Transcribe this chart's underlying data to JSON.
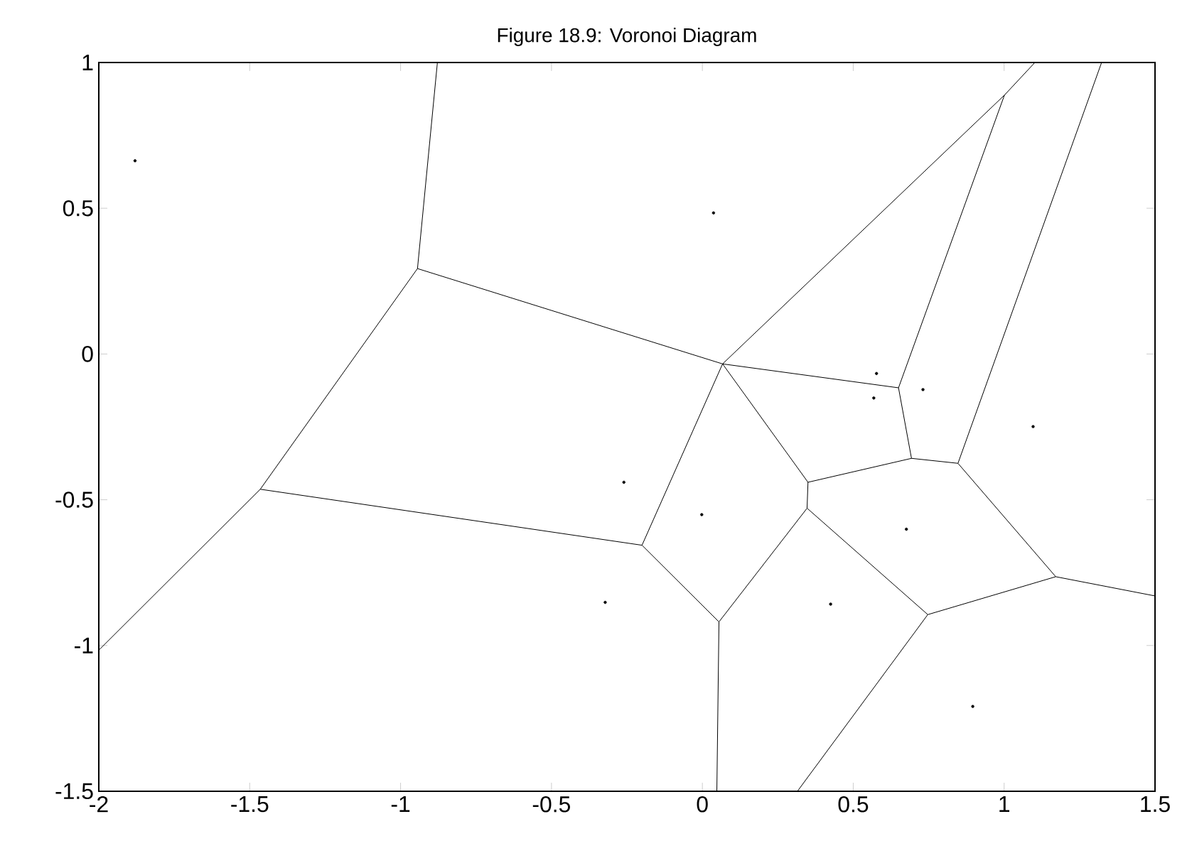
{
  "chart_data": {
    "type": "scatter",
    "title": "Figure 18.9: Voronoi Diagram",
    "xlim": [
      -2,
      1.5
    ],
    "ylim": [
      -1.5,
      1
    ],
    "xticks": [
      -2,
      -1.5,
      -1,
      -0.5,
      0,
      0.5,
      1,
      1.5
    ],
    "yticks": [
      -1.5,
      -1,
      -0.5,
      0,
      0.5,
      1
    ],
    "grid": false,
    "series": [
      {
        "type": "line",
        "color": "#000000",
        "marker": "none",
        "x": [
          -0.878,
          -0.944,
          null,
          -0.944,
          -1.465,
          null,
          -1.465,
          -2,
          null,
          -0.944,
          0.067,
          null,
          -1.465,
          -0.2,
          null,
          -0.2,
          0.067,
          null,
          -0.2,
          0.055,
          null,
          0.055,
          0.048,
          null,
          0.055,
          0.347,
          null,
          0.067,
          0.35,
          null,
          0.35,
          0.347,
          null,
          0.067,
          0.65,
          null,
          0.65,
          0.693,
          null,
          0.35,
          0.693,
          null,
          0.693,
          0.847,
          null,
          0.347,
          0.747,
          null,
          0.747,
          0.315,
          null,
          0.747,
          1.171,
          null,
          1.171,
          0.847,
          null,
          1.171,
          1.5,
          null,
          0.067,
          1.001,
          null,
          1.001,
          1.102,
          null,
          1.001,
          0.65,
          null,
          0.847,
          1.323
        ],
        "values": [
          1,
          0.293,
          null,
          0.293,
          -0.464,
          null,
          -0.464,
          -1.016,
          null,
          0.293,
          -0.034,
          null,
          -0.464,
          -0.656,
          null,
          -0.656,
          -0.034,
          null,
          -0.656,
          -0.919,
          null,
          -0.919,
          -1.5,
          null,
          -0.919,
          -0.529,
          null,
          -0.034,
          -0.44,
          null,
          -0.44,
          -0.529,
          null,
          -0.034,
          -0.116,
          null,
          -0.116,
          -0.358,
          null,
          -0.44,
          -0.358,
          null,
          -0.358,
          -0.375,
          null,
          -0.529,
          -0.894,
          null,
          -0.894,
          -1.5,
          null,
          -0.894,
          -0.764,
          null,
          -0.764,
          -0.375,
          null,
          -0.764,
          -0.83,
          null,
          -0.034,
          0.888,
          null,
          0.888,
          1,
          null,
          0.888,
          -0.116,
          null,
          -0.375,
          1
        ]
      },
      {
        "color": "#000000",
        "marker": "circle",
        "x": [
          -1.88,
          0.037,
          0.577,
          0.568,
          0.731,
          1.096,
          -0.26,
          -0.002,
          0.676,
          -0.322,
          0.425,
          0.896
        ],
        "values": [
          0.663,
          0.484,
          -0.067,
          -0.151,
          -0.122,
          -0.249,
          -0.44,
          -0.551,
          -0.601,
          -0.852,
          -0.858,
          -1.209
        ]
      }
    ]
  }
}
